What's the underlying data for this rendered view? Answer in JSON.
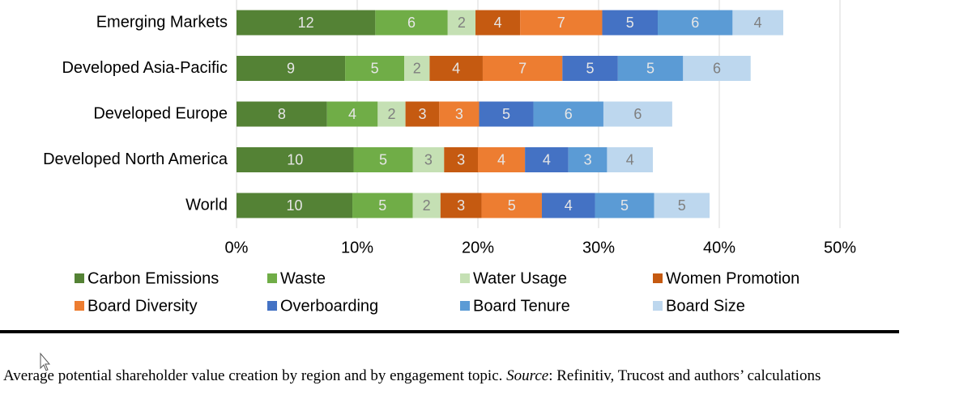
{
  "chart_data": {
    "type": "stacked-bar-horizontal",
    "categories": [
      "Emerging Markets",
      "Developed Asia-Pacific",
      "Developed Europe",
      "Developed North America",
      "World"
    ],
    "series": [
      {
        "name": "Carbon Emissions",
        "color": "#548235",
        "values": [
          11.5,
          9.0,
          7.5,
          9.7,
          9.6
        ],
        "value_labels": [
          "12",
          "9",
          "8",
          "10",
          "10"
        ]
      },
      {
        "name": "Waste",
        "color": "#70ad47",
        "values": [
          6.0,
          4.9,
          4.2,
          4.9,
          5.0
        ],
        "value_labels": [
          "6",
          "5",
          "4",
          "5",
          "5"
        ]
      },
      {
        "name": "Water Usage",
        "color": "#c5e0b4",
        "values": [
          2.3,
          2.1,
          2.3,
          2.6,
          2.3
        ],
        "value_labels": [
          "2",
          "2",
          "2",
          "3",
          "2"
        ]
      },
      {
        "name": "Women Promotion",
        "color": "#c55a11",
        "values": [
          3.7,
          4.4,
          2.8,
          2.8,
          3.4
        ],
        "value_labels": [
          "4",
          "4",
          "3",
          "3",
          "3"
        ]
      },
      {
        "name": "Board Diversity",
        "color": "#ed7d31",
        "values": [
          6.8,
          6.6,
          3.3,
          3.9,
          5.0
        ],
        "value_labels": [
          "7",
          "7",
          "3",
          "4",
          "5"
        ]
      },
      {
        "name": "Overboarding",
        "color": "#4472c4",
        "values": [
          4.6,
          4.6,
          4.5,
          3.6,
          4.4
        ],
        "value_labels": [
          "5",
          "5",
          "5",
          "4",
          "4"
        ]
      },
      {
        "name": "Board Tenure",
        "color": "#5b9bd5",
        "values": [
          6.2,
          5.4,
          5.8,
          3.2,
          4.9
        ],
        "value_labels": [
          "6",
          "5",
          "6",
          "3",
          "5"
        ]
      },
      {
        "name": "Board Size",
        "color": "#bdd7ee",
        "values": [
          4.2,
          5.6,
          5.7,
          3.8,
          4.6
        ],
        "value_labels": [
          "4",
          "6",
          "6",
          "4",
          "5"
        ]
      }
    ],
    "xlim": [
      0,
      50
    ],
    "xticks": [
      {
        "value": 0,
        "label": "0%"
      },
      {
        "value": 10,
        "label": "10%"
      },
      {
        "value": 20,
        "label": "20%"
      },
      {
        "value": 30,
        "label": "30%"
      },
      {
        "value": 40,
        "label": "40%"
      },
      {
        "value": 50,
        "label": "50%"
      }
    ],
    "grid": true,
    "legend": "bottom"
  },
  "caption": [
    "Average potential shareholder value creation by region and by engagement topic. ",
    "Source",
    ": Refinitiv, Trucost and authors’ calculations"
  ]
}
